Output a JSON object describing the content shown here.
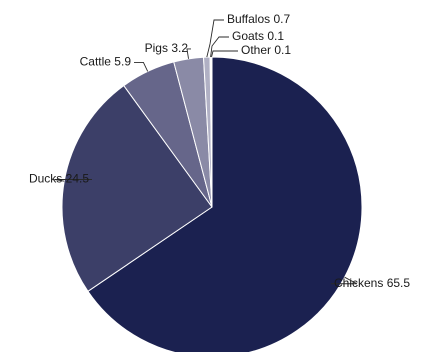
{
  "chart_data": {
    "type": "pie",
    "title": "",
    "legend": "none",
    "start_angle_deg": 0,
    "direction": "clockwise",
    "slices": [
      {
        "label": "Chickens",
        "value": 65.5,
        "display": "Chickens 65.5",
        "color": "#1b2150"
      },
      {
        "label": "Ducks",
        "value": 24.5,
        "display": "Ducks 24.5",
        "color": "#3c3f68"
      },
      {
        "label": "Cattle",
        "value": 5.9,
        "display": "Cattle 5.9",
        "color": "#66668a"
      },
      {
        "label": "Pigs",
        "value": 3.2,
        "display": "Pigs 3.2",
        "color": "#8a8aa6"
      },
      {
        "label": "Buffalos",
        "value": 0.7,
        "display": "Buffalos 0.7",
        "color": "#b0b0c4"
      },
      {
        "label": "Goats",
        "value": 0.1,
        "display": "Goats 0.1",
        "color": "#c8c8d6"
      },
      {
        "label": "Other",
        "value": 0.1,
        "display": "Other 0.1",
        "color": "#dcdce6"
      }
    ]
  }
}
